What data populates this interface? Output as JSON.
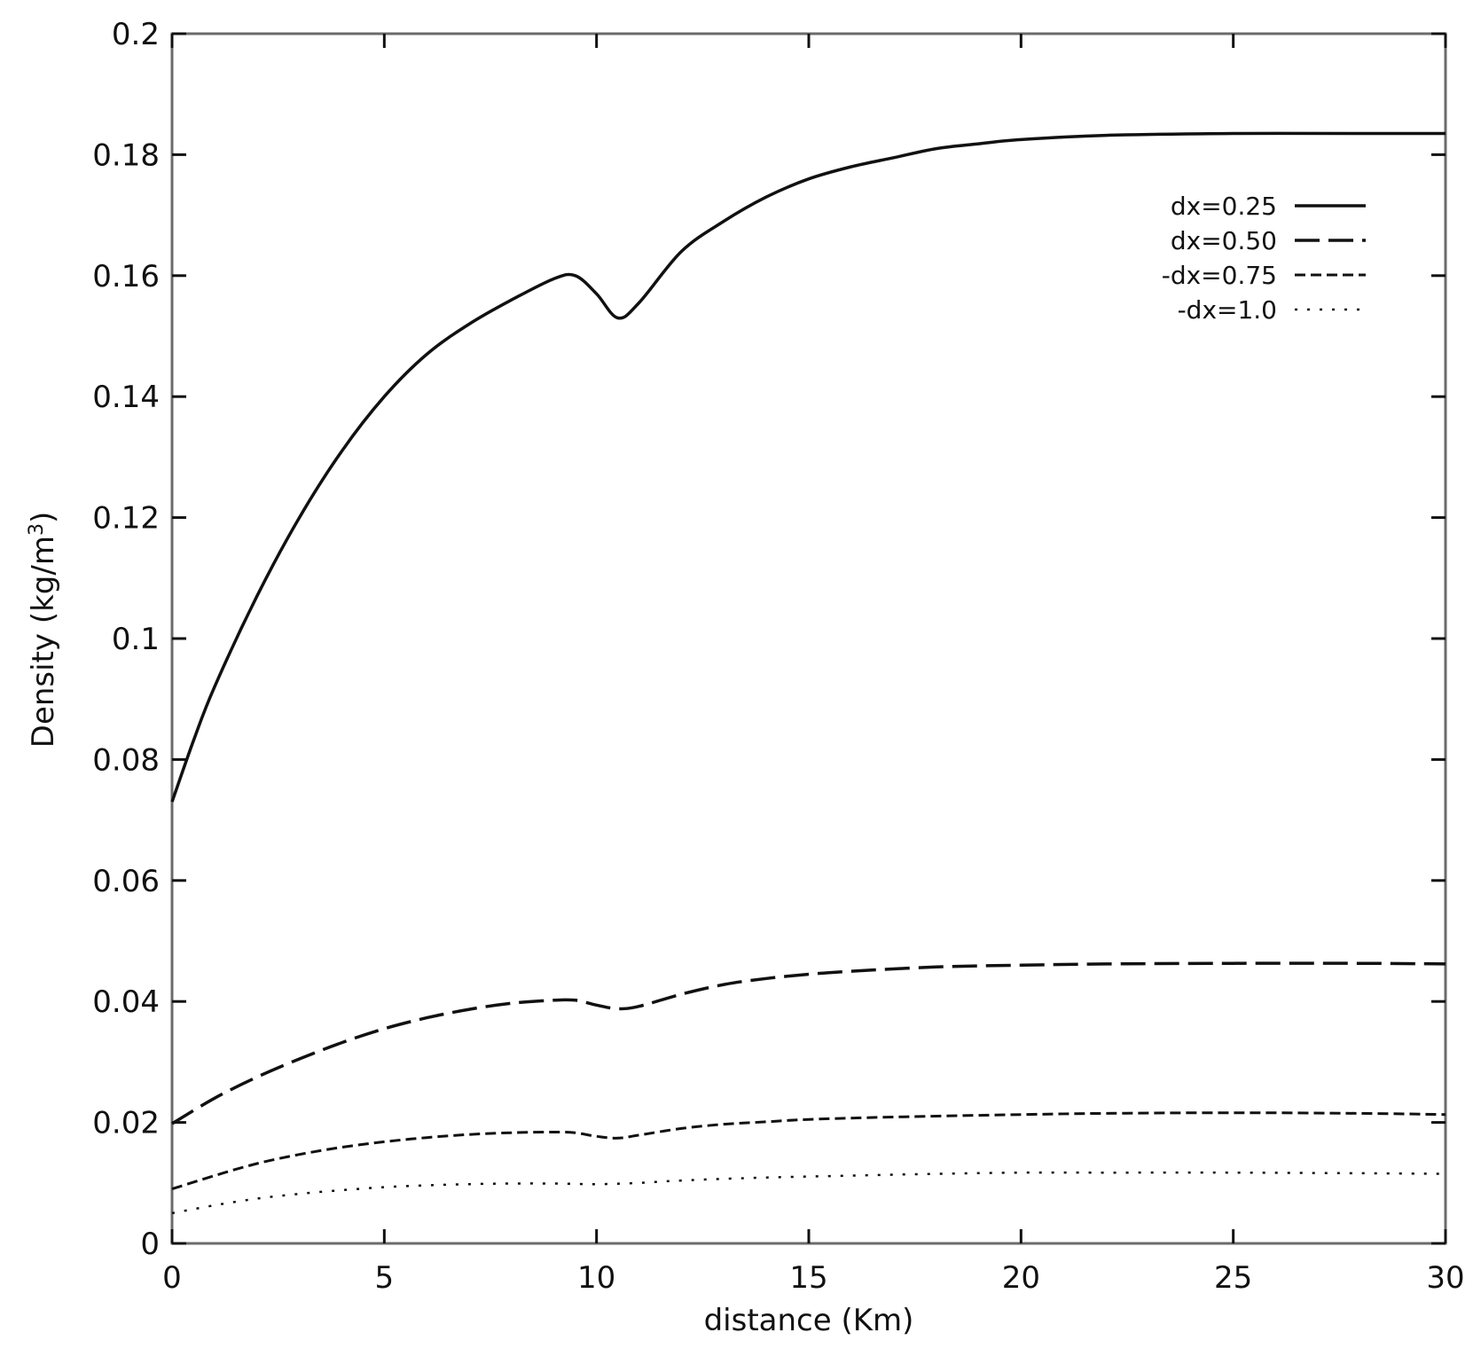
{
  "chart_data": {
    "type": "line",
    "title": "",
    "xlabel": "distance (Km)",
    "ylabel_main": "Density (kg/m",
    "ylabel_sup": "3",
    "ylabel_close": ")",
    "xlim": [
      0,
      30
    ],
    "ylim": [
      0,
      0.2
    ],
    "x_ticks": [
      0,
      5,
      10,
      15,
      20,
      25,
      30
    ],
    "x_tick_labels": [
      "0",
      "5",
      "10",
      "15",
      "20",
      "25",
      "30"
    ],
    "y_ticks": [
      0,
      0.02,
      0.04,
      0.06,
      0.08,
      0.1,
      0.12,
      0.14,
      0.16,
      0.18,
      0.2
    ],
    "y_tick_labels": [
      "0",
      "0.02",
      "0.04",
      "0.06",
      "0.08",
      "0.1",
      "0.12",
      "0.14",
      "0.16",
      "0.18",
      "0.2"
    ],
    "grid": false,
    "legend_position": "top-right",
    "series": [
      {
        "name": "dx=0.25",
        "dash": "solid",
        "x": [
          0,
          0.5,
          1,
          2,
          3,
          4,
          5,
          6,
          7,
          8,
          9,
          9.5,
          10,
          10.5,
          11,
          12,
          13,
          14,
          15,
          16,
          17,
          18,
          19,
          20,
          22,
          25,
          28,
          30
        ],
        "y": [
          0.073,
          0.083,
          0.092,
          0.107,
          0.12,
          0.131,
          0.14,
          0.147,
          0.152,
          0.156,
          0.1595,
          0.16,
          0.157,
          0.153,
          0.1555,
          0.164,
          0.169,
          0.173,
          0.176,
          0.178,
          0.1795,
          0.181,
          0.1818,
          0.1825,
          0.1832,
          0.1835,
          0.1835,
          0.1835
        ]
      },
      {
        "name": "dx=0.50",
        "dash": "long-dash",
        "x": [
          0,
          1,
          2,
          3,
          4,
          5,
          6,
          7,
          8,
          9,
          9.5,
          10,
          10.5,
          11,
          12,
          13,
          14,
          15,
          16,
          18,
          20,
          22,
          25,
          28,
          30
        ],
        "y": [
          0.0198,
          0.024,
          0.0275,
          0.0305,
          0.0332,
          0.0355,
          0.0373,
          0.0387,
          0.0397,
          0.0402,
          0.0402,
          0.0394,
          0.0388,
          0.0392,
          0.0412,
          0.0428,
          0.0438,
          0.0445,
          0.045,
          0.0457,
          0.046,
          0.0462,
          0.0463,
          0.0463,
          0.0462
        ]
      },
      {
        "name": "-dx=0.75",
        "dash": "short-dash",
        "x": [
          0,
          1,
          2,
          3,
          4,
          5,
          6,
          7,
          8,
          9,
          9.5,
          10,
          10.5,
          11,
          12,
          13,
          14,
          15,
          17,
          20,
          22,
          25,
          28,
          30
        ],
        "y": [
          0.009,
          0.0112,
          0.0132,
          0.0147,
          0.0159,
          0.0168,
          0.0175,
          0.018,
          0.0183,
          0.0184,
          0.0183,
          0.0177,
          0.0174,
          0.0179,
          0.019,
          0.0197,
          0.0201,
          0.0205,
          0.0209,
          0.0213,
          0.0215,
          0.0216,
          0.0215,
          0.0213
        ]
      },
      {
        "name": "-dx=1.0",
        "dash": "dotted",
        "x": [
          0,
          1,
          2,
          3,
          4,
          5,
          6,
          7,
          8,
          9,
          10,
          11,
          12,
          14,
          16,
          18,
          20,
          22,
          25,
          28,
          30
        ],
        "y": [
          0.005,
          0.0063,
          0.0074,
          0.0082,
          0.0088,
          0.0093,
          0.0096,
          0.0098,
          0.0099,
          0.0099,
          0.0098,
          0.01,
          0.0104,
          0.0109,
          0.0112,
          0.0115,
          0.0117,
          0.0117,
          0.0117,
          0.0116,
          0.0115
        ]
      }
    ]
  }
}
